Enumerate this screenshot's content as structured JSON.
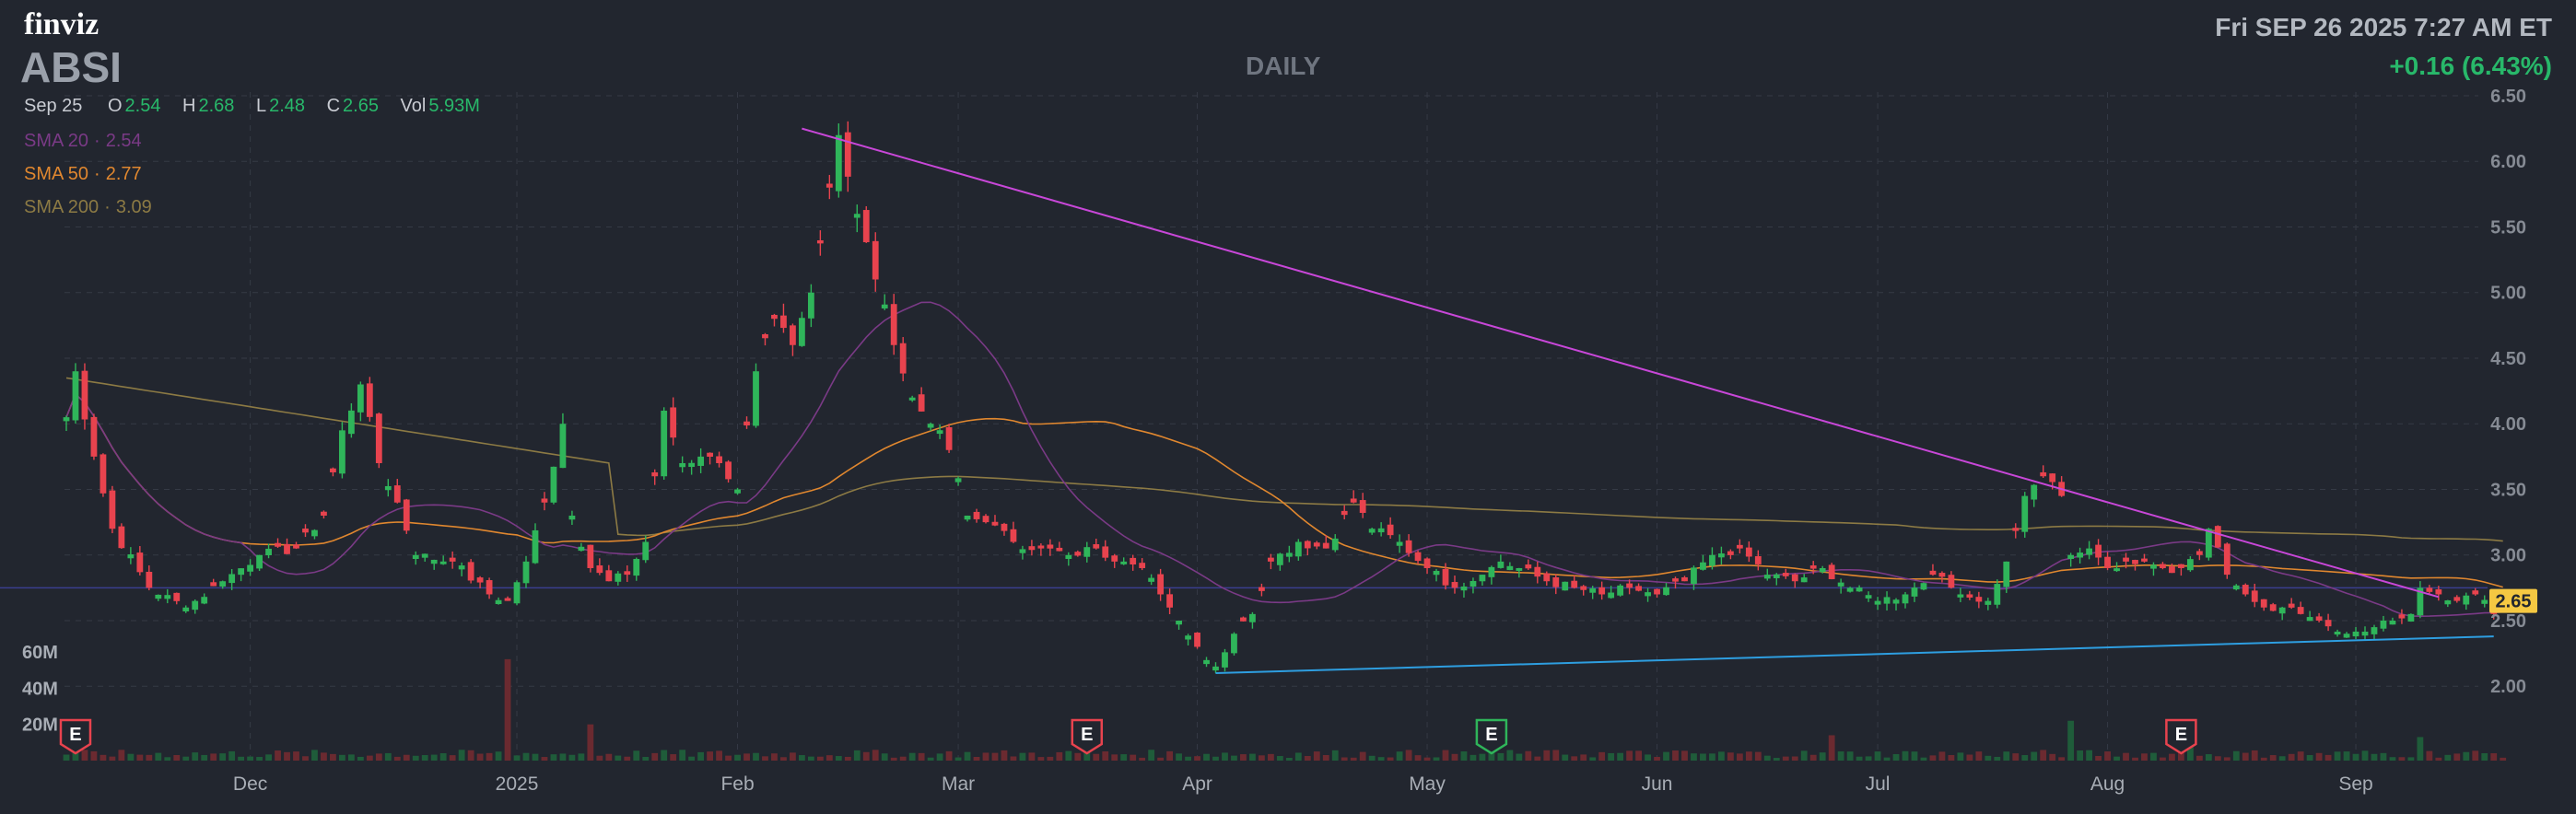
{
  "header": {
    "logo": "finviz",
    "ticker": "ABSI",
    "timeframe": "DAILY",
    "datetime": "Fri SEP 26 2025 7:27 AM ET",
    "change": "+0.16 (6.43%)"
  },
  "ohlc": {
    "date": "Sep 25",
    "open_label": "O",
    "open": "2.54",
    "high_label": "H",
    "high": "2.68",
    "low_label": "L",
    "low": "2.48",
    "close_label": "C",
    "close": "2.65",
    "vol_label": "Vol",
    "vol": "5.93M"
  },
  "indicators": {
    "sma20": {
      "label": "SMA 20",
      "sep": "·",
      "value": "2.54"
    },
    "sma50": {
      "label": "SMA 50",
      "sep": "·",
      "value": "2.77"
    },
    "sma200": {
      "label": "SMA 200",
      "sep": "·",
      "value": "3.09"
    }
  },
  "colors": {
    "background": "#22262f",
    "up": "#2fb55a",
    "down": "#e8434e",
    "sma20": "#7a3a86",
    "sma50": "#e0872f",
    "sma200": "#8c7a44",
    "trendline_down": "#c847d8",
    "trendline_up": "#2e9ee0",
    "price_label_bg": "#f5c842"
  },
  "chart_data": {
    "type": "candlestick",
    "y_axis_ticks": [
      "6.50",
      "6.00",
      "5.50",
      "5.00",
      "4.50",
      "4.00",
      "3.50",
      "3.00",
      "2.50",
      "2.00"
    ],
    "ylim": [
      1.77,
      6.5
    ],
    "volume_axis_ticks": [
      "60M",
      "40M",
      "20M"
    ],
    "volume_max": 60,
    "x_axis_labels": [
      "Dec",
      "2025",
      "Feb",
      "Mar",
      "Apr",
      "May",
      "Jun",
      "Jul",
      "Aug",
      "Sep"
    ],
    "x_axis_label_index": [
      20,
      49,
      73,
      97,
      123,
      148,
      173,
      197,
      222,
      249
    ],
    "last_price_label": "2.65",
    "earnings_markers": [
      {
        "label": "E",
        "index": 1,
        "color": "#e8434e"
      },
      {
        "label": "E",
        "index": 111,
        "color": "#e8434e"
      },
      {
        "label": "E",
        "index": 155,
        "color": "#2fb55a"
      },
      {
        "label": "E",
        "index": 230,
        "color": "#e8434e"
      }
    ],
    "trendlines": [
      {
        "color": "#c847d8",
        "from": {
          "index": 80,
          "value": 6.25
        },
        "to": {
          "index": 258,
          "value": 2.68
        }
      },
      {
        "color": "#2e9ee0",
        "from": {
          "index": 125,
          "value": 2.1
        },
        "to": {
          "index": 264,
          "value": 2.38
        }
      }
    ],
    "horizontal_line": {
      "value": 2.75,
      "color": "#3b3f8f"
    },
    "anchors": [
      {
        "i": 0,
        "c": 4.05
      },
      {
        "i": 1,
        "c": 4.4
      },
      {
        "i": 3,
        "c": 3.75
      },
      {
        "i": 5,
        "c": 3.2
      },
      {
        "i": 9,
        "c": 2.75
      },
      {
        "i": 13,
        "c": 2.6
      },
      {
        "i": 17,
        "c": 2.8
      },
      {
        "i": 21,
        "c": 3.0
      },
      {
        "i": 25,
        "c": 3.05
      },
      {
        "i": 28,
        "c": 3.3
      },
      {
        "i": 30,
        "c": 3.95
      },
      {
        "i": 32,
        "c": 4.3
      },
      {
        "i": 34,
        "c": 3.7
      },
      {
        "i": 36,
        "c": 3.4
      },
      {
        "i": 38,
        "c": 3.0
      },
      {
        "i": 42,
        "c": 2.95
      },
      {
        "i": 46,
        "c": 2.7
      },
      {
        "i": 48,
        "c": 2.65
      },
      {
        "i": 50,
        "c": 2.95
      },
      {
        "i": 52,
        "c": 3.4
      },
      {
        "i": 54,
        "c": 4.0
      },
      {
        "i": 55,
        "c": 3.3
      },
      {
        "i": 57,
        "c": 2.9
      },
      {
        "i": 59,
        "c": 2.8
      },
      {
        "i": 61,
        "c": 2.85
      },
      {
        "i": 63,
        "c": 3.1
      },
      {
        "i": 64,
        "c": 3.6
      },
      {
        "i": 65,
        "c": 4.1
      },
      {
        "i": 67,
        "c": 3.7
      },
      {
        "i": 69,
        "c": 3.75
      },
      {
        "i": 71,
        "c": 3.7
      },
      {
        "i": 73,
        "c": 3.5
      },
      {
        "i": 75,
        "c": 4.4
      },
      {
        "i": 77,
        "c": 4.8
      },
      {
        "i": 79,
        "c": 4.6
      },
      {
        "i": 81,
        "c": 5.0
      },
      {
        "i": 83,
        "c": 5.8
      },
      {
        "i": 84,
        "c": 6.2
      },
      {
        "i": 86,
        "c": 5.6
      },
      {
        "i": 88,
        "c": 5.1
      },
      {
        "i": 90,
        "c": 4.6
      },
      {
        "i": 92,
        "c": 4.2
      },
      {
        "i": 94,
        "c": 4.0
      },
      {
        "i": 96,
        "c": 3.8
      },
      {
        "i": 98,
        "c": 3.3
      },
      {
        "i": 100,
        "c": 3.25
      },
      {
        "i": 103,
        "c": 3.1
      },
      {
        "i": 106,
        "c": 3.05
      },
      {
        "i": 109,
        "c": 3.0
      },
      {
        "i": 112,
        "c": 3.05
      },
      {
        "i": 115,
        "c": 2.95
      },
      {
        "i": 117,
        "c": 2.9
      },
      {
        "i": 119,
        "c": 2.7
      },
      {
        "i": 121,
        "c": 2.5
      },
      {
        "i": 123,
        "c": 2.3
      },
      {
        "i": 125,
        "c": 2.15
      },
      {
        "i": 127,
        "c": 2.4
      },
      {
        "i": 129,
        "c": 2.55
      },
      {
        "i": 131,
        "c": 2.95
      },
      {
        "i": 134,
        "c": 3.1
      },
      {
        "i": 137,
        "c": 3.05
      },
      {
        "i": 140,
        "c": 3.4
      },
      {
        "i": 142,
        "c": 3.2
      },
      {
        "i": 145,
        "c": 3.1
      },
      {
        "i": 148,
        "c": 2.9
      },
      {
        "i": 151,
        "c": 2.75
      },
      {
        "i": 154,
        "c": 2.85
      },
      {
        "i": 156,
        "c": 2.95
      },
      {
        "i": 158,
        "c": 2.9
      },
      {
        "i": 161,
        "c": 2.8
      },
      {
        "i": 164,
        "c": 2.75
      },
      {
        "i": 167,
        "c": 2.7
      },
      {
        "i": 170,
        "c": 2.75
      },
      {
        "i": 173,
        "c": 2.7
      },
      {
        "i": 176,
        "c": 2.8
      },
      {
        "i": 179,
        "c": 3.0
      },
      {
        "i": 182,
        "c": 3.05
      },
      {
        "i": 185,
        "c": 2.85
      },
      {
        "i": 188,
        "c": 2.8
      },
      {
        "i": 191,
        "c": 2.9
      },
      {
        "i": 194,
        "c": 2.75
      },
      {
        "i": 197,
        "c": 2.65
      },
      {
        "i": 200,
        "c": 2.7
      },
      {
        "i": 203,
        "c": 2.85
      },
      {
        "i": 206,
        "c": 2.7
      },
      {
        "i": 209,
        "c": 2.65
      },
      {
        "i": 211,
        "c": 2.95
      },
      {
        "i": 213,
        "c": 3.45
      },
      {
        "i": 215,
        "c": 3.6
      },
      {
        "i": 217,
        "c": 3.45
      },
      {
        "i": 218,
        "c": 3.0
      },
      {
        "i": 220,
        "c": 3.05
      },
      {
        "i": 222,
        "c": 2.9
      },
      {
        "i": 224,
        "c": 2.95
      },
      {
        "i": 226,
        "c": 2.95
      },
      {
        "i": 228,
        "c": 2.9
      },
      {
        "i": 230,
        "c": 2.9
      },
      {
        "i": 232,
        "c": 3.0
      },
      {
        "i": 233,
        "c": 3.2
      },
      {
        "i": 235,
        "c": 2.85
      },
      {
        "i": 237,
        "c": 2.7
      },
      {
        "i": 239,
        "c": 2.6
      },
      {
        "i": 241,
        "c": 2.6
      },
      {
        "i": 243,
        "c": 2.55
      },
      {
        "i": 245,
        "c": 2.5
      },
      {
        "i": 248,
        "c": 2.4
      },
      {
        "i": 251,
        "c": 2.45
      },
      {
        "i": 253,
        "c": 2.5
      },
      {
        "i": 255,
        "c": 2.55
      },
      {
        "i": 256,
        "c": 2.75
      },
      {
        "i": 258,
        "c": 2.7
      },
      {
        "i": 260,
        "c": 2.65
      },
      {
        "i": 262,
        "c": 2.7
      },
      {
        "i": 264,
        "c": 2.55
      },
      {
        "i": 265,
        "c": 2.65
      }
    ],
    "volume_spikes": [
      {
        "i": 48,
        "v": 56
      },
      {
        "i": 57,
        "v": 20
      },
      {
        "i": 111,
        "v": 14
      },
      {
        "i": 155,
        "v": 22
      },
      {
        "i": 192,
        "v": 14
      },
      {
        "i": 218,
        "v": 22
      },
      {
        "i": 231,
        "v": 18
      },
      {
        "i": 256,
        "v": 13
      }
    ]
  }
}
